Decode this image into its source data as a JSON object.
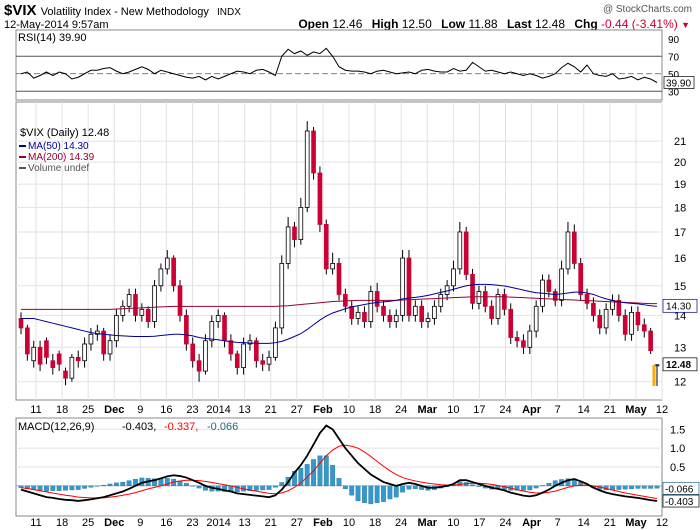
{
  "header": {
    "symbol": "$VIX",
    "name": "Volatility Index - New Methodology",
    "exchange": "INDX",
    "timestamp": "12-May-2014 9:57am",
    "copyright": "@ StockCharts.com",
    "open_label": "Open",
    "open": "12.46",
    "high_label": "High",
    "high": "12.50",
    "low_label": "Low",
    "low": "11.88",
    "last_label": "Last",
    "last": "12.48",
    "chg_label": "Chg",
    "chg": "-0.44 (-3.41%)",
    "down_arrow": "▼"
  },
  "colors": {
    "up": "#ffffff",
    "down": "#cc0033",
    "ma50": "#000099",
    "ma200": "#990033",
    "macd": "#000000",
    "signal": "#ff0000",
    "hist": "#3399cc"
  },
  "chart_data": [
    {
      "type": "line",
      "panel": "rsi",
      "legend": "RSI(14) 39.90",
      "current_label": "39.90",
      "ylim": [
        20,
        100
      ],
      "y_ticks": [
        30,
        50,
        70,
        90
      ],
      "reference_lines": [
        30,
        50,
        70
      ],
      "values": [
        50,
        52,
        45,
        48,
        52,
        48,
        52,
        50,
        44,
        46,
        50,
        54,
        54,
        56,
        57,
        53,
        50,
        52,
        55,
        58,
        55,
        50,
        54,
        52,
        50,
        48,
        46,
        45,
        47,
        43,
        47,
        44,
        47,
        50,
        53,
        52,
        50,
        54,
        55,
        52,
        48,
        70,
        78,
        73,
        76,
        71,
        75,
        73,
        79,
        70,
        58,
        54,
        53,
        53,
        52,
        50,
        53,
        54,
        52,
        50,
        51,
        52,
        50,
        54,
        55,
        53,
        52,
        52,
        56,
        53,
        54,
        63,
        58,
        53,
        54,
        52,
        50,
        52,
        50,
        48,
        50,
        48,
        45,
        47,
        50,
        57,
        62,
        58,
        52,
        60,
        50,
        48,
        47,
        50,
        44,
        45,
        47,
        43,
        46,
        44,
        40
      ]
    },
    {
      "type": "candlestick",
      "panel": "price",
      "legend": "$VIX (Daily) 12.48",
      "series_legend": [
        {
          "name": "MA(50) 14.30",
          "color": "#000099"
        },
        {
          "name": "MA(200) 14.39",
          "color": "#990033"
        },
        {
          "name": "Volume undef",
          "color": "#555555"
        }
      ],
      "scale": "log",
      "ylim": [
        11.5,
        23
      ],
      "y_ticks": [
        12,
        13,
        14,
        15,
        16,
        17,
        18,
        19,
        20,
        21
      ],
      "x_labels": [
        "11",
        "18",
        "25",
        "Dec",
        "9",
        "16",
        "23",
        "2014",
        "13",
        "21",
        "27",
        "Feb",
        "10",
        "18",
        "24",
        "Mar",
        "10",
        "17",
        "24",
        "Apr",
        "7",
        "14",
        "21",
        "May",
        "12"
      ],
      "last_label": "12.48",
      "ma50_label": "14.30",
      "ma200_label": "14.39",
      "open": [
        13.9,
        13.6,
        12.6,
        13.0,
        13.2,
        12.6,
        12.8,
        12.3,
        12.1,
        12.7,
        12.6,
        13.1,
        13.4,
        13.5,
        12.8,
        13.2,
        14.0,
        14.3,
        14.7,
        14.0,
        14.2,
        13.8,
        15.0,
        15.6,
        16.0,
        15.0,
        14.0,
        13.1,
        12.6,
        12.3,
        13.2,
        13.8,
        14.0,
        13.2,
        12.8,
        12.4,
        13.1,
        13.2,
        12.6,
        12.5,
        12.7,
        13.6,
        15.8,
        17.2,
        16.7,
        18.0,
        21.5,
        19.5,
        17.3,
        15.6,
        15.8,
        14.7,
        14.3,
        13.9,
        14.1,
        13.8,
        14.8,
        14.3,
        14.0,
        13.8,
        14.0,
        16.0,
        14.0,
        14.3,
        13.8,
        13.9,
        14.3,
        14.7,
        15.0,
        15.6,
        17.0,
        15.4,
        14.4,
        14.8,
        14.3,
        13.9,
        14.7,
        14.2,
        13.3,
        13.2,
        13.0,
        13.5,
        14.3,
        15.2,
        14.8,
        14.5,
        15.6,
        17.0,
        15.8,
        14.7,
        14.4,
        14.0,
        13.6,
        14.2,
        14.5,
        14.0,
        13.4,
        14.1,
        13.7,
        13.5,
        12.46
      ],
      "close": [
        13.6,
        12.8,
        13.0,
        12.5,
        12.7,
        12.4,
        12.5,
        12.1,
        12.7,
        12.6,
        13.1,
        13.4,
        13.5,
        12.8,
        13.2,
        14.0,
        14.3,
        14.7,
        14.0,
        14.2,
        13.8,
        15.0,
        15.6,
        16.0,
        15.0,
        14.0,
        13.1,
        12.6,
        12.3,
        13.2,
        13.8,
        14.0,
        13.2,
        12.8,
        12.4,
        13.1,
        13.2,
        12.6,
        12.5,
        12.7,
        13.6,
        15.8,
        17.2,
        16.7,
        18.0,
        21.5,
        19.5,
        17.3,
        15.6,
        15.8,
        14.7,
        14.3,
        13.9,
        14.1,
        13.8,
        14.8,
        14.3,
        14.0,
        13.8,
        14.0,
        16.0,
        14.0,
        14.3,
        13.8,
        13.9,
        14.3,
        14.7,
        15.0,
        15.6,
        17.0,
        15.4,
        14.4,
        14.8,
        14.3,
        13.9,
        14.7,
        14.2,
        13.3,
        13.2,
        13.0,
        13.5,
        14.3,
        15.2,
        14.8,
        14.5,
        15.6,
        17.0,
        15.8,
        14.7,
        14.4,
        14.0,
        13.6,
        14.2,
        14.5,
        14.0,
        13.4,
        14.1,
        13.7,
        13.5,
        12.9,
        12.48
      ],
      "high": [
        14.1,
        13.7,
        13.2,
        13.2,
        13.3,
        12.8,
        12.9,
        12.4,
        12.8,
        12.9,
        13.3,
        13.6,
        13.7,
        13.6,
        13.4,
        14.2,
        14.5,
        14.9,
        14.9,
        14.4,
        14.3,
        15.2,
        15.8,
        16.3,
        16.1,
        15.2,
        14.2,
        13.3,
        12.8,
        13.4,
        14.0,
        14.2,
        14.1,
        13.4,
        12.9,
        13.3,
        13.4,
        13.3,
        12.8,
        12.9,
        13.8,
        16.1,
        17.6,
        17.4,
        18.4,
        22.0,
        21.7,
        19.8,
        17.5,
        16.2,
        16.0,
        14.9,
        14.5,
        14.3,
        14.3,
        15.0,
        15.1,
        14.5,
        14.2,
        14.2,
        16.3,
        16.3,
        14.5,
        14.5,
        14.1,
        14.5,
        14.9,
        15.2,
        15.9,
        17.4,
        17.2,
        15.6,
        15.0,
        15.0,
        14.5,
        14.9,
        14.9,
        14.4,
        13.5,
        13.4,
        13.7,
        14.5,
        15.4,
        15.4,
        14.9,
        15.9,
        17.4,
        17.3,
        16.0,
        14.9,
        14.6,
        14.2,
        14.4,
        14.7,
        14.7,
        14.2,
        14.3,
        14.3,
        13.9,
        13.6,
        12.5
      ],
      "low": [
        13.4,
        12.6,
        12.4,
        12.3,
        12.5,
        12.2,
        12.3,
        11.9,
        12.0,
        12.4,
        12.4,
        12.9,
        13.2,
        12.6,
        12.6,
        13.0,
        13.8,
        14.1,
        13.8,
        13.8,
        13.6,
        13.6,
        14.8,
        15.4,
        14.8,
        13.8,
        12.9,
        12.4,
        12.0,
        12.2,
        13.0,
        13.6,
        13.0,
        12.6,
        12.2,
        12.2,
        12.9,
        12.4,
        12.3,
        12.3,
        12.6,
        13.4,
        15.6,
        16.4,
        16.5,
        17.8,
        19.2,
        17.0,
        15.4,
        15.4,
        14.5,
        14.1,
        13.7,
        13.7,
        13.6,
        13.6,
        14.1,
        13.8,
        13.6,
        13.6,
        13.8,
        13.8,
        13.8,
        13.6,
        13.6,
        13.7,
        14.1,
        14.5,
        14.8,
        15.4,
        15.2,
        14.2,
        14.2,
        14.1,
        13.7,
        13.7,
        14.0,
        13.1,
        13.0,
        12.8,
        12.8,
        13.3,
        14.1,
        14.6,
        14.3,
        14.3,
        15.4,
        15.6,
        14.5,
        14.2,
        13.8,
        13.4,
        13.4,
        14.0,
        13.8,
        13.2,
        13.2,
        13.5,
        13.3,
        12.8,
        11.88
      ],
      "ma50": [
        13.9,
        13.9,
        13.9,
        13.85,
        13.8,
        13.75,
        13.7,
        13.65,
        13.6,
        13.55,
        13.5,
        13.45,
        13.42,
        13.4,
        13.38,
        13.36,
        13.35,
        13.34,
        13.33,
        13.33,
        13.33,
        13.34,
        13.36,
        13.38,
        13.4,
        13.4,
        13.38,
        13.35,
        13.3,
        13.27,
        13.25,
        13.23,
        13.2,
        13.17,
        13.15,
        13.14,
        13.13,
        13.12,
        13.12,
        13.12,
        13.14,
        13.18,
        13.25,
        13.33,
        13.42,
        13.55,
        13.7,
        13.85,
        13.98,
        14.08,
        14.15,
        14.22,
        14.28,
        14.32,
        14.36,
        14.4,
        14.43,
        14.45,
        14.47,
        14.5,
        14.55,
        14.58,
        14.6,
        14.63,
        14.67,
        14.72,
        14.77,
        14.82,
        14.88,
        14.94,
        15.0,
        15.03,
        15.05,
        15.05,
        15.04,
        15.02,
        14.99,
        14.95,
        14.9,
        14.85,
        14.8,
        14.76,
        14.74,
        14.72,
        14.7,
        14.72,
        14.75,
        14.78,
        14.78,
        14.75,
        14.7,
        14.62,
        14.55,
        14.5,
        14.45,
        14.42,
        14.4,
        14.38,
        14.35,
        14.32,
        14.3
      ],
      "ma200": [
        14.2,
        14.2,
        14.2,
        14.2,
        14.2,
        14.2,
        14.2,
        14.2,
        14.2,
        14.2,
        14.2,
        14.2,
        14.2,
        14.2,
        14.2,
        14.21,
        14.22,
        14.23,
        14.24,
        14.25,
        14.26,
        14.27,
        14.28,
        14.29,
        14.3,
        14.3,
        14.3,
        14.3,
        14.3,
        14.3,
        14.3,
        14.3,
        14.3,
        14.3,
        14.3,
        14.3,
        14.3,
        14.3,
        14.3,
        14.3,
        14.3,
        14.31,
        14.32,
        14.34,
        14.36,
        14.38,
        14.4,
        14.42,
        14.44,
        14.46,
        14.47,
        14.48,
        14.49,
        14.5,
        14.5,
        14.5,
        14.5,
        14.5,
        14.5,
        14.5,
        14.51,
        14.52,
        14.53,
        14.54,
        14.55,
        14.56,
        14.57,
        14.58,
        14.59,
        14.6,
        14.61,
        14.62,
        14.62,
        14.62,
        14.62,
        14.62,
        14.62,
        14.61,
        14.6,
        14.59,
        14.58,
        14.57,
        14.56,
        14.55,
        14.54,
        14.53,
        14.52,
        14.51,
        14.5,
        14.49,
        14.48,
        14.47,
        14.46,
        14.45,
        14.44,
        14.43,
        14.42,
        14.41,
        14.4,
        14.39,
        14.39
      ]
    },
    {
      "type": "line",
      "panel": "macd",
      "legend_prefix": "MACD(12,26,9)",
      "legend_macd": "-0.403,",
      "legend_signal": "-0.337,",
      "legend_hist": "-0.066",
      "macd_label": "-0.403",
      "hist_label": "-0.066",
      "ylim": [
        -0.8,
        1.8
      ],
      "y_ticks": [
        0.5,
        1.0,
        1.5
      ],
      "y_tick_labels": [
        "0.5",
        "1.0",
        "1.5"
      ],
      "macd": [
        -0.1,
        -0.15,
        -0.2,
        -0.25,
        -0.3,
        -0.32,
        -0.35,
        -0.37,
        -0.38,
        -0.4,
        -0.38,
        -0.36,
        -0.33,
        -0.3,
        -0.25,
        -0.2,
        -0.15,
        -0.08,
        0.0,
        0.08,
        0.12,
        0.15,
        0.2,
        0.25,
        0.28,
        0.26,
        0.22,
        0.15,
        0.08,
        0.0,
        -0.05,
        -0.08,
        -0.12,
        -0.15,
        -0.2,
        -0.22,
        -0.24,
        -0.26,
        -0.28,
        -0.3,
        -0.25,
        -0.1,
        0.1,
        0.35,
        0.55,
        0.8,
        1.1,
        1.4,
        1.6,
        1.5,
        1.25,
        1.0,
        0.8,
        0.6,
        0.45,
        0.3,
        0.2,
        0.1,
        0.05,
        0.0,
        0.05,
        0.08,
        0.05,
        0.0,
        -0.05,
        -0.05,
        -0.03,
        0.0,
        0.05,
        0.15,
        0.15,
        0.1,
        0.05,
        0.0,
        -0.05,
        -0.08,
        -0.12,
        -0.18,
        -0.22,
        -0.26,
        -0.28,
        -0.25,
        -0.18,
        -0.1,
        0.0,
        0.08,
        0.15,
        0.18,
        0.12,
        0.05,
        -0.05,
        -0.12,
        -0.18,
        -0.22,
        -0.25,
        -0.28,
        -0.3,
        -0.32,
        -0.35,
        -0.38,
        -0.403
      ],
      "signal": [
        -0.05,
        -0.07,
        -0.1,
        -0.13,
        -0.16,
        -0.19,
        -0.22,
        -0.25,
        -0.27,
        -0.3,
        -0.31,
        -0.32,
        -0.32,
        -0.32,
        -0.3,
        -0.28,
        -0.25,
        -0.22,
        -0.18,
        -0.13,
        -0.08,
        -0.04,
        0.0,
        0.05,
        0.1,
        0.13,
        0.15,
        0.15,
        0.14,
        0.12,
        0.09,
        0.06,
        0.03,
        0.0,
        -0.04,
        -0.08,
        -0.11,
        -0.14,
        -0.17,
        -0.2,
        -0.21,
        -0.19,
        -0.13,
        -0.04,
        0.08,
        0.23,
        0.4,
        0.6,
        0.8,
        0.95,
        1.05,
        1.08,
        1.05,
        1.0,
        0.9,
        0.78,
        0.65,
        0.52,
        0.4,
        0.3,
        0.22,
        0.17,
        0.13,
        0.1,
        0.07,
        0.05,
        0.03,
        0.02,
        0.02,
        0.04,
        0.06,
        0.07,
        0.07,
        0.06,
        0.04,
        0.01,
        -0.02,
        -0.06,
        -0.1,
        -0.14,
        -0.17,
        -0.19,
        -0.19,
        -0.17,
        -0.14,
        -0.09,
        -0.04,
        0.0,
        0.02,
        0.02,
        0.0,
        -0.03,
        -0.07,
        -0.11,
        -0.15,
        -0.19,
        -0.22,
        -0.25,
        -0.28,
        -0.31,
        -0.337
      ]
    }
  ]
}
